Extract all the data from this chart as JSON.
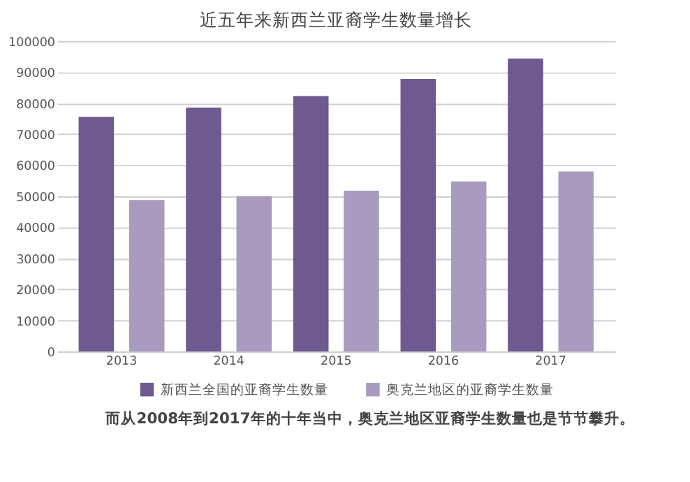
{
  "chart_data": {
    "type": "bar",
    "title": "近五年来新西兰亚裔学生数量增长",
    "categories": [
      "2013",
      "2014",
      "2015",
      "2016",
      "2017"
    ],
    "series": [
      {
        "name": "新西兰全国的亚裔学生数量",
        "color": "#6e5a8e",
        "values": [
          75600,
          78600,
          82300,
          87800,
          94400
        ]
      },
      {
        "name": "奥克兰地区的亚裔学生数量",
        "color": "#a99bbf",
        "values": [
          48800,
          50000,
          51800,
          54800,
          58000
        ]
      }
    ],
    "ylim": [
      0,
      100000
    ],
    "yticks": [
      0,
      10000,
      20000,
      30000,
      40000,
      50000,
      60000,
      70000,
      80000,
      90000,
      100000
    ],
    "grid": "y",
    "legend": "bottom",
    "annotations": [
      "而从2008年到2017年的十年当中，奥克兰地区亚裔学生数量也是节节攀升。"
    ]
  }
}
